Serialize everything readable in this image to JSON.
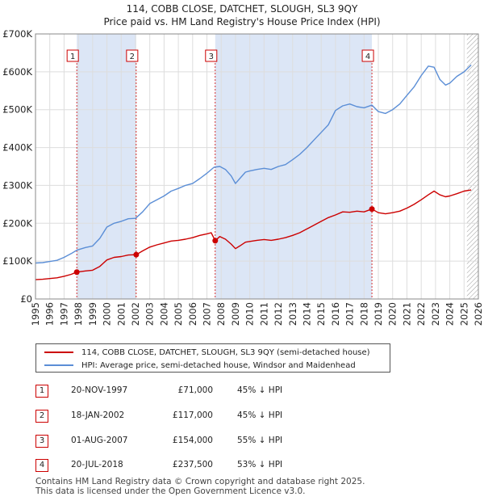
{
  "title_line1": "114, COBB CLOSE, DATCHET, SLOUGH, SL3 9QY",
  "title_line2": "Price paid vs. HM Land Registry's House Price Index (HPI)",
  "colors": {
    "property": "#cc0000",
    "hpi": "#5b8ed6",
    "shade": "#dce6f6",
    "hatch": "#999999"
  },
  "chart_data": {
    "type": "line",
    "xlim": [
      1995,
      2026
    ],
    "ylim": [
      0,
      700000
    ],
    "y_ticks": [
      0,
      100000,
      200000,
      300000,
      400000,
      500000,
      600000,
      700000
    ],
    "y_tick_labels": [
      "£0",
      "£100K",
      "£200K",
      "£300K",
      "£400K",
      "£500K",
      "£600K",
      "£700K"
    ],
    "x_ticks": [
      1995,
      1996,
      1997,
      1998,
      1999,
      2000,
      2001,
      2002,
      2003,
      2004,
      2005,
      2006,
      2007,
      2008,
      2009,
      2010,
      2011,
      2012,
      2013,
      2014,
      2015,
      2016,
      2017,
      2018,
      2019,
      2020,
      2021,
      2022,
      2023,
      2024,
      2025,
      2026
    ],
    "grid": true,
    "projection_start": 2025.2,
    "shaded_spans": [
      [
        1997.89,
        2002.05
      ],
      [
        2007.58,
        2018.55
      ]
    ],
    "series": [
      {
        "name": "HPI: Average price, semi-detached house, Windsor and Maidenhead",
        "x": [
          1995,
          1995.5,
          1996,
          1996.5,
          1997,
          1997.5,
          1997.89,
          1998.5,
          1999,
          1999.5,
          2000,
          2000.5,
          2001,
          2001.5,
          2002,
          2002.5,
          2003,
          2003.5,
          2004,
          2004.5,
          2005,
          2005.5,
          2006,
          2006.5,
          2007,
          2007.5,
          2007.9,
          2008.3,
          2008.7,
          2009.0,
          2009.3,
          2009.7,
          2010,
          2010.5,
          2011,
          2011.5,
          2012,
          2012.5,
          2013,
          2013.5,
          2014,
          2014.5,
          2015,
          2015.5,
          2016,
          2016.5,
          2017,
          2017.5,
          2018,
          2018.55,
          2019,
          2019.5,
          2020,
          2020.5,
          2021,
          2021.5,
          2022,
          2022.5,
          2022.9,
          2023.3,
          2023.7,
          2024,
          2024.5,
          2025,
          2025.5
        ],
        "values": [
          95000,
          96000,
          99000,
          102000,
          110000,
          120000,
          129000,
          136000,
          140000,
          160000,
          190000,
          200000,
          205000,
          212000,
          213000,
          230000,
          252000,
          262000,
          272000,
          285000,
          292000,
          300000,
          305000,
          318000,
          332000,
          348000,
          350000,
          342000,
          325000,
          305000,
          318000,
          335000,
          338000,
          342000,
          345000,
          342000,
          350000,
          355000,
          368000,
          382000,
          400000,
          420000,
          440000,
          460000,
          498000,
          510000,
          515000,
          508000,
          505000,
          512000,
          495000,
          490000,
          500000,
          515000,
          538000,
          560000,
          590000,
          615000,
          612000,
          580000,
          565000,
          570000,
          588000,
          600000,
          618000
        ]
      },
      {
        "name": "114, COBB CLOSE, DATCHET, SLOUGH, SL3 9QY (semi-detached house)",
        "x": [
          1995,
          1995.5,
          1996,
          1996.5,
          1997,
          1997.5,
          1997.89,
          1998.5,
          1999,
          1999.5,
          2000,
          2000.5,
          2001,
          2001.5,
          2002.05,
          2002.5,
          2003,
          2003.5,
          2004,
          2004.5,
          2005,
          2005.5,
          2006,
          2006.5,
          2007,
          2007.3,
          2007.58,
          2007.9,
          2008.3,
          2008.7,
          2009.0,
          2009.3,
          2009.7,
          2010,
          2010.5,
          2011,
          2011.5,
          2012,
          2012.5,
          2013,
          2013.5,
          2014,
          2014.5,
          2015,
          2015.5,
          2016,
          2016.5,
          2017,
          2017.5,
          2018,
          2018.55,
          2019,
          2019.5,
          2020,
          2020.5,
          2021,
          2021.5,
          2022,
          2022.5,
          2022.9,
          2023.3,
          2023.7,
          2024,
          2024.5,
          2025,
          2025.5
        ],
        "values": [
          51000,
          52000,
          54000,
          56000,
          60000,
          65000,
          71000,
          74000,
          76000,
          86000,
          103000,
          110000,
          112000,
          116000,
          117000,
          127000,
          137000,
          143000,
          148000,
          153000,
          155000,
          158000,
          162000,
          168000,
          172000,
          175000,
          154000,
          165000,
          158000,
          145000,
          133000,
          140000,
          150000,
          152000,
          155000,
          157000,
          155000,
          158000,
          162000,
          168000,
          175000,
          185000,
          195000,
          205000,
          215000,
          222000,
          230000,
          229000,
          232000,
          230000,
          237500,
          228000,
          225000,
          228000,
          232000,
          240000,
          250000,
          262000,
          275000,
          285000,
          275000,
          270000,
          272000,
          278000,
          285000,
          288000
        ]
      }
    ],
    "sale_markers": [
      {
        "label": "1",
        "x": 1997.89,
        "value": 71000
      },
      {
        "label": "2",
        "x": 2002.05,
        "value": 117000
      },
      {
        "label": "3",
        "x": 2007.58,
        "value": 154000
      },
      {
        "label": "4",
        "x": 2018.55,
        "value": 237500
      }
    ]
  },
  "legend": {
    "property_label": "114, COBB CLOSE, DATCHET, SLOUGH, SL3 9QY (semi-detached house)",
    "hpi_label": "HPI: Average price, semi-detached house, Windsor and Maidenhead"
  },
  "sales": [
    {
      "num": "1",
      "date": "20-NOV-1997",
      "price": "£71,000",
      "hpi": "45% ↓ HPI"
    },
    {
      "num": "2",
      "date": "18-JAN-2002",
      "price": "£117,000",
      "hpi": "45% ↓ HPI"
    },
    {
      "num": "3",
      "date": "01-AUG-2007",
      "price": "£154,000",
      "hpi": "55% ↓ HPI"
    },
    {
      "num": "4",
      "date": "20-JUL-2018",
      "price": "£237,500",
      "hpi": "53% ↓ HPI"
    }
  ],
  "footer": {
    "line1": "Contains HM Land Registry data © Crown copyright and database right 2025.",
    "line2": "This data is licensed under the Open Government Licence v3.0."
  }
}
